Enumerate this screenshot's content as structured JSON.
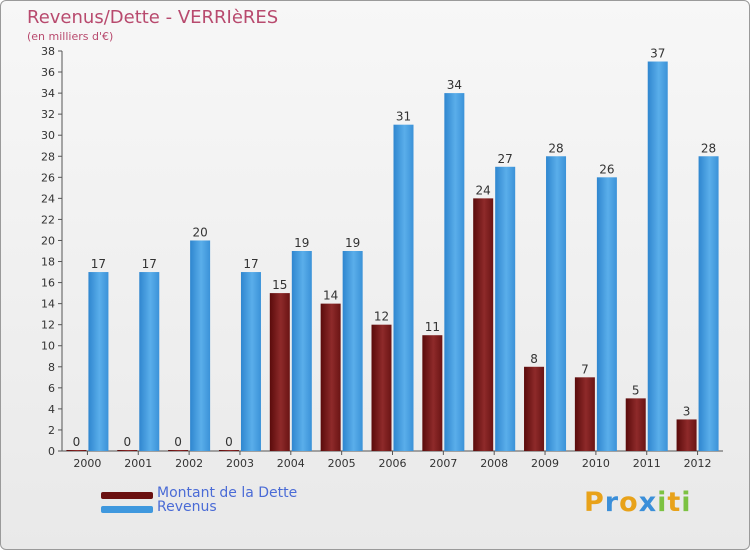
{
  "title": "Revenus/Dette - VERRIèRES",
  "subtitle": "(en milliers d'€)",
  "colors": {
    "dette": "#7a1a1a",
    "revenus": "#3f98de",
    "axis_text": "#333333",
    "title": "#b84a6e",
    "legend_text": "#4a6bd6"
  },
  "logo": {
    "text": "Proxiti",
    "letters": [
      {
        "ch": "P",
        "color": "#e8a21a"
      },
      {
        "ch": "r",
        "color": "#3b8fd9"
      },
      {
        "ch": "o",
        "color": "#e8a21a"
      },
      {
        "ch": "x",
        "color": "#3b8fd9"
      },
      {
        "ch": "i",
        "color": "#7cc242"
      },
      {
        "ch": "t",
        "color": "#e8a21a"
      },
      {
        "ch": "i",
        "color": "#7cc242"
      }
    ]
  },
  "chart_data": {
    "type": "bar",
    "title": "Revenus/Dette - VERRIèRES",
    "ylabel": "(en milliers d'€)",
    "xlabel": "",
    "categories": [
      "2000",
      "2001",
      "2002",
      "2003",
      "2004",
      "2005",
      "2006",
      "2007",
      "2008",
      "2009",
      "2010",
      "2011",
      "2012"
    ],
    "series": [
      {
        "name": "Montant de la Dette",
        "color": "#7a1a1a",
        "values": [
          0,
          0,
          0,
          0,
          15,
          14,
          12,
          11,
          24,
          8,
          7,
          5,
          3
        ]
      },
      {
        "name": "Revenus",
        "color": "#3f98de",
        "values": [
          17,
          17,
          20,
          17,
          19,
          19,
          31,
          34,
          27,
          28,
          26,
          37,
          28
        ]
      }
    ],
    "ylim": [
      0,
      38
    ],
    "ytick_step": 2,
    "legend": "bottom-left",
    "grid": false
  }
}
